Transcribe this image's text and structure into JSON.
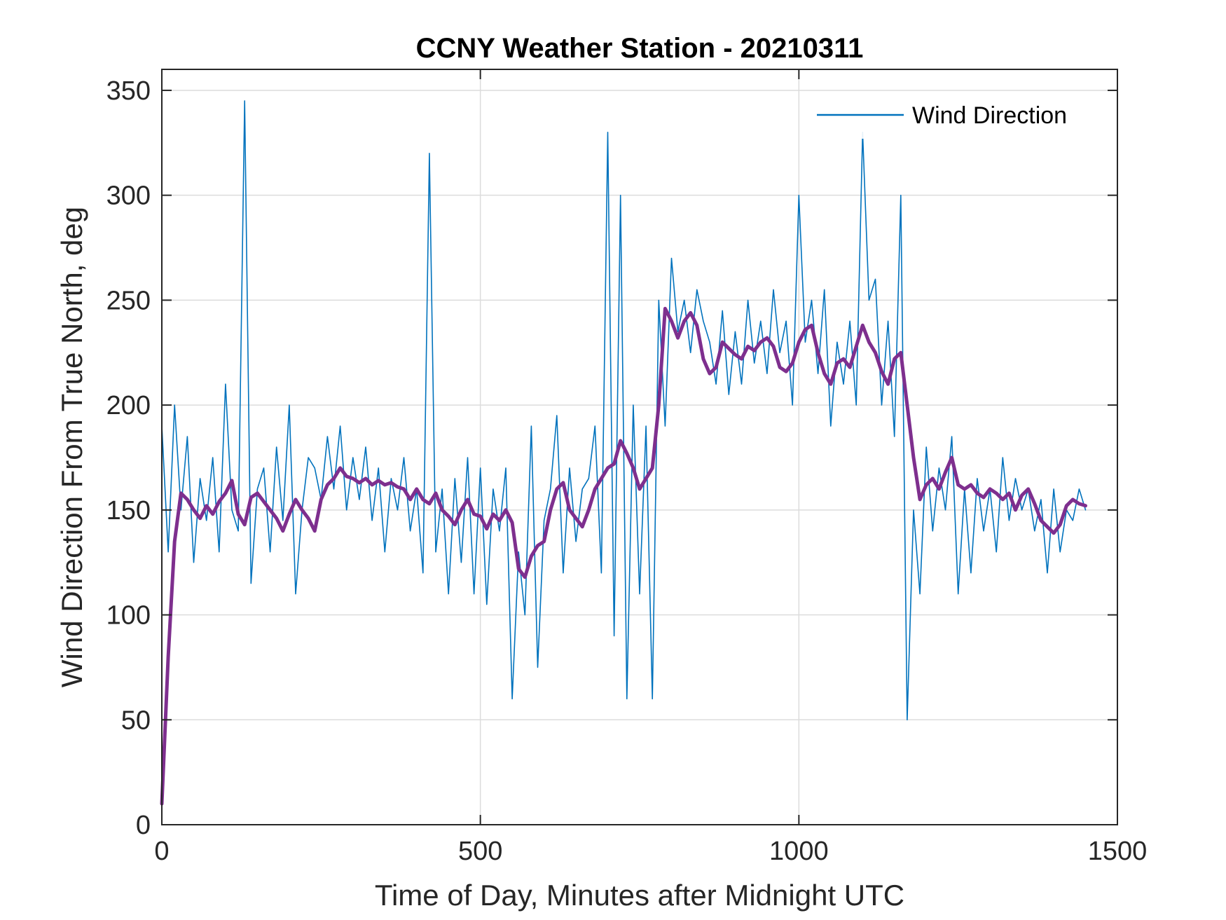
{
  "chart_data": {
    "type": "line",
    "title": "CCNY Weather Station - 20210311",
    "xlabel": "Time of Day, Minutes after Midnight UTC",
    "ylabel": "Wind Direction From True North, deg",
    "xlim": [
      0,
      1500
    ],
    "ylim": [
      0,
      360
    ],
    "xticks": [
      0,
      500,
      1000,
      1500
    ],
    "yticks": [
      0,
      50,
      100,
      150,
      200,
      250,
      300,
      350
    ],
    "grid": true,
    "legend": {
      "location": "top-right",
      "entries": [
        "Wind Direction"
      ]
    },
    "series": [
      {
        "name": "Wind Direction",
        "color": "#0072bd",
        "style": "raw-noisy",
        "x": [
          0,
          10,
          20,
          30,
          40,
          50,
          60,
          70,
          80,
          90,
          100,
          110,
          120,
          130,
          140,
          150,
          160,
          170,
          180,
          190,
          200,
          210,
          220,
          230,
          240,
          250,
          260,
          270,
          280,
          290,
          300,
          310,
          320,
          330,
          340,
          350,
          360,
          370,
          380,
          390,
          400,
          410,
          420,
          430,
          440,
          450,
          460,
          470,
          480,
          490,
          500,
          510,
          520,
          530,
          540,
          550,
          560,
          570,
          580,
          590,
          600,
          610,
          620,
          630,
          640,
          650,
          660,
          670,
          680,
          690,
          700,
          710,
          720,
          730,
          740,
          750,
          760,
          770,
          780,
          790,
          800,
          810,
          820,
          830,
          840,
          850,
          860,
          870,
          880,
          890,
          900,
          910,
          920,
          930,
          940,
          950,
          960,
          970,
          980,
          990,
          1000,
          1010,
          1020,
          1030,
          1040,
          1050,
          1060,
          1070,
          1080,
          1090,
          1100,
          1110,
          1120,
          1130,
          1140,
          1150,
          1160,
          1170,
          1180,
          1190,
          1200,
          1210,
          1220,
          1230,
          1240,
          1250,
          1260,
          1270,
          1280,
          1290,
          1300,
          1310,
          1320,
          1330,
          1340,
          1350,
          1360,
          1370,
          1380,
          1390,
          1400,
          1410,
          1420,
          1430,
          1440,
          1450
        ],
        "values": [
          190,
          130,
          200,
          150,
          185,
          125,
          165,
          145,
          175,
          130,
          210,
          150,
          140,
          345,
          115,
          160,
          170,
          130,
          180,
          145,
          200,
          110,
          150,
          175,
          170,
          155,
          185,
          160,
          190,
          150,
          175,
          155,
          180,
          145,
          170,
          130,
          165,
          150,
          175,
          140,
          160,
          120,
          320,
          130,
          160,
          110,
          165,
          125,
          175,
          110,
          170,
          105,
          160,
          140,
          170,
          60,
          130,
          100,
          190,
          75,
          145,
          160,
          195,
          120,
          170,
          135,
          160,
          165,
          190,
          120,
          330,
          90,
          300,
          60,
          200,
          110,
          190,
          60,
          250,
          190,
          270,
          235,
          250,
          225,
          255,
          240,
          230,
          210,
          245,
          205,
          235,
          210,
          250,
          220,
          240,
          215,
          255,
          225,
          240,
          200,
          300,
          230,
          250,
          215,
          255,
          190,
          230,
          210,
          240,
          200,
          330,
          250,
          260,
          200,
          240,
          185,
          300,
          50,
          150,
          110,
          180,
          140,
          170,
          150,
          185,
          110,
          160,
          120,
          165,
          140,
          160,
          130,
          175,
          145,
          165,
          150,
          160,
          140,
          155,
          120,
          160,
          130,
          150,
          145,
          160,
          150
        ]
      },
      {
        "name": "",
        "color": "#7e2f8e",
        "style": "smoothed",
        "x": [
          0,
          10,
          20,
          30,
          40,
          50,
          60,
          70,
          80,
          90,
          100,
          110,
          120,
          130,
          140,
          150,
          160,
          170,
          180,
          190,
          200,
          210,
          220,
          230,
          240,
          250,
          260,
          270,
          280,
          290,
          300,
          310,
          320,
          330,
          340,
          350,
          360,
          370,
          380,
          390,
          400,
          410,
          420,
          430,
          440,
          450,
          460,
          470,
          480,
          490,
          500,
          510,
          520,
          530,
          540,
          550,
          560,
          570,
          580,
          590,
          600,
          610,
          620,
          630,
          640,
          650,
          660,
          670,
          680,
          690,
          700,
          710,
          720,
          730,
          740,
          750,
          760,
          770,
          780,
          790,
          800,
          810,
          820,
          830,
          840,
          850,
          860,
          870,
          880,
          890,
          900,
          910,
          920,
          930,
          940,
          950,
          960,
          970,
          980,
          990,
          1000,
          1010,
          1020,
          1030,
          1040,
          1050,
          1060,
          1070,
          1080,
          1090,
          1100,
          1110,
          1120,
          1130,
          1140,
          1150,
          1160,
          1170,
          1180,
          1190,
          1200,
          1210,
          1220,
          1230,
          1240,
          1250,
          1260,
          1270,
          1280,
          1290,
          1300,
          1310,
          1320,
          1330,
          1340,
          1350,
          1360,
          1370,
          1380,
          1390,
          1400,
          1410,
          1420,
          1430,
          1440,
          1450
        ],
        "values": [
          10,
          80,
          135,
          158,
          155,
          150,
          146,
          152,
          148,
          154,
          158,
          164,
          148,
          143,
          156,
          158,
          154,
          150,
          146,
          140,
          148,
          155,
          150,
          146,
          140,
          155,
          162,
          165,
          170,
          166,
          165,
          163,
          165,
          162,
          164,
          162,
          163,
          161,
          160,
          155,
          160,
          155,
          153,
          158,
          150,
          147,
          143,
          150,
          155,
          148,
          147,
          141,
          148,
          145,
          150,
          144,
          122,
          118,
          128,
          133,
          135,
          150,
          160,
          163,
          150,
          146,
          142,
          150,
          160,
          165,
          170,
          172,
          183,
          177,
          170,
          160,
          165,
          170,
          200,
          246,
          240,
          232,
          240,
          244,
          238,
          222,
          215,
          218,
          230,
          227,
          224,
          222,
          228,
          226,
          230,
          232,
          228,
          218,
          216,
          220,
          230,
          236,
          238,
          225,
          215,
          210,
          220,
          222,
          218,
          228,
          238,
          230,
          225,
          216,
          210,
          222,
          225,
          200,
          175,
          155,
          162,
          165,
          160,
          168,
          175,
          162,
          160,
          162,
          158,
          156,
          160,
          158,
          155,
          158,
          150,
          157,
          160,
          153,
          145,
          142,
          139,
          143,
          152,
          155,
          153,
          152
        ]
      }
    ]
  }
}
